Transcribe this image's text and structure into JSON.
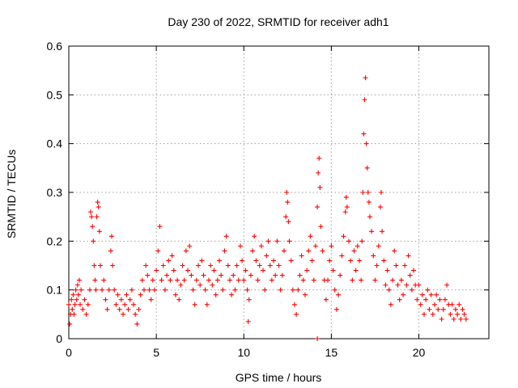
{
  "chart_data": {
    "type": "scatter",
    "title": "Day 230 of 2022, SRMTID for receiver adh1",
    "xlabel": "GPS time / hours",
    "ylabel": "SRMTID / TECUs",
    "xlim": [
      0,
      24
    ],
    "ylim": [
      0,
      0.6
    ],
    "xticks": [
      0,
      5,
      10,
      15,
      20
    ],
    "yticks": [
      0,
      0.1,
      0.2,
      0.3,
      0.4,
      0.5,
      0.6
    ],
    "xtick_labels": [
      "0",
      "5",
      "10",
      "15",
      "20"
    ],
    "ytick_labels": [
      "0",
      "0.1",
      "0.2",
      "0.3",
      "0.4",
      "0.5",
      "0.6"
    ],
    "grid": true,
    "marker": "+",
    "series_color": "#ff0000",
    "series": [
      {
        "name": "SRMTID",
        "points": [
          [
            0.0,
            0.07
          ],
          [
            0.05,
            0.03
          ],
          [
            0.1,
            0.05
          ],
          [
            0.15,
            0.08
          ],
          [
            0.2,
            0.06
          ],
          [
            0.25,
            0.09
          ],
          [
            0.3,
            0.05
          ],
          [
            0.35,
            0.07
          ],
          [
            0.4,
            0.1
          ],
          [
            0.45,
            0.08
          ],
          [
            0.5,
            0.11
          ],
          [
            0.55,
            0.09
          ],
          [
            0.6,
            0.12
          ],
          [
            0.65,
            0.07
          ],
          [
            0.7,
            0.1
          ],
          [
            0.8,
            0.06
          ],
          [
            0.9,
            0.08
          ],
          [
            1.0,
            0.05
          ],
          [
            1.1,
            0.07
          ],
          [
            1.2,
            0.1
          ],
          [
            1.25,
            0.26
          ],
          [
            1.3,
            0.25
          ],
          [
            1.35,
            0.23
          ],
          [
            1.4,
            0.2
          ],
          [
            1.45,
            0.15
          ],
          [
            1.5,
            0.12
          ],
          [
            1.55,
            0.1
          ],
          [
            1.6,
            0.25
          ],
          [
            1.65,
            0.28
          ],
          [
            1.7,
            0.27
          ],
          [
            1.75,
            0.22
          ],
          [
            1.8,
            0.15
          ],
          [
            1.9,
            0.1
          ],
          [
            2.0,
            0.12
          ],
          [
            2.1,
            0.08
          ],
          [
            2.2,
            0.06
          ],
          [
            2.3,
            0.1
          ],
          [
            2.4,
            0.18
          ],
          [
            2.45,
            0.21
          ],
          [
            2.5,
            0.15
          ],
          [
            2.6,
            0.1
          ],
          [
            2.7,
            0.07
          ],
          [
            2.8,
            0.09
          ],
          [
            2.9,
            0.06
          ],
          [
            3.0,
            0.08
          ],
          [
            3.1,
            0.05
          ],
          [
            3.2,
            0.07
          ],
          [
            3.3,
            0.09
          ],
          [
            3.4,
            0.06
          ],
          [
            3.5,
            0.08
          ],
          [
            3.6,
            0.1
          ],
          [
            3.7,
            0.07
          ],
          [
            3.8,
            0.05
          ],
          [
            3.9,
            0.03
          ],
          [
            4.0,
            0.06
          ],
          [
            4.1,
            0.09
          ],
          [
            4.2,
            0.12
          ],
          [
            4.3,
            0.1
          ],
          [
            4.4,
            0.15
          ],
          [
            4.5,
            0.13
          ],
          [
            4.6,
            0.1
          ],
          [
            4.7,
            0.08
          ],
          [
            4.8,
            0.12
          ],
          [
            4.9,
            0.1
          ],
          [
            5.0,
            0.14
          ],
          [
            5.1,
            0.18
          ],
          [
            5.2,
            0.23
          ],
          [
            5.3,
            0.12
          ],
          [
            5.4,
            0.15
          ],
          [
            5.5,
            0.1
          ],
          [
            5.6,
            0.13
          ],
          [
            5.7,
            0.16
          ],
          [
            5.8,
            0.12
          ],
          [
            5.9,
            0.17
          ],
          [
            6.0,
            0.14
          ],
          [
            6.1,
            0.09
          ],
          [
            6.2,
            0.12
          ],
          [
            6.3,
            0.08
          ],
          [
            6.4,
            0.11
          ],
          [
            6.5,
            0.15
          ],
          [
            6.6,
            0.12
          ],
          [
            6.7,
            0.18
          ],
          [
            6.8,
            0.14
          ],
          [
            6.9,
            0.19
          ],
          [
            7.0,
            0.13
          ],
          [
            7.1,
            0.1
          ],
          [
            7.2,
            0.07
          ],
          [
            7.3,
            0.12
          ],
          [
            7.4,
            0.15
          ],
          [
            7.5,
            0.11
          ],
          [
            7.6,
            0.16
          ],
          [
            7.7,
            0.13
          ],
          [
            7.8,
            0.1
          ],
          [
            7.9,
            0.07
          ],
          [
            8.0,
            0.12
          ],
          [
            8.1,
            0.15
          ],
          [
            8.2,
            0.11
          ],
          [
            8.3,
            0.14
          ],
          [
            8.4,
            0.09
          ],
          [
            8.5,
            0.12
          ],
          [
            8.6,
            0.16
          ],
          [
            8.7,
            0.13
          ],
          [
            8.8,
            0.1
          ],
          [
            8.9,
            0.18
          ],
          [
            9.0,
            0.21
          ],
          [
            9.1,
            0.15
          ],
          [
            9.2,
            0.12
          ],
          [
            9.3,
            0.09
          ],
          [
            9.4,
            0.13
          ],
          [
            9.5,
            0.1
          ],
          [
            9.6,
            0.15
          ],
          [
            9.7,
            0.12
          ],
          [
            9.8,
            0.19
          ],
          [
            9.9,
            0.16
          ],
          [
            10.0,
            0.12
          ],
          [
            10.1,
            0.14
          ],
          [
            10.2,
            0.1
          ],
          [
            10.25,
            0.035
          ],
          [
            10.3,
            0.08
          ],
          [
            10.4,
            0.13
          ],
          [
            10.5,
            0.18
          ],
          [
            10.6,
            0.21
          ],
          [
            10.7,
            0.16
          ],
          [
            10.8,
            0.12
          ],
          [
            10.9,
            0.15
          ],
          [
            11.0,
            0.19
          ],
          [
            11.1,
            0.14
          ],
          [
            11.2,
            0.1
          ],
          [
            11.3,
            0.17
          ],
          [
            11.4,
            0.2
          ],
          [
            11.5,
            0.15
          ],
          [
            11.6,
            0.12
          ],
          [
            11.7,
            0.16
          ],
          [
            11.8,
            0.13
          ],
          [
            11.9,
            0.2
          ],
          [
            12.0,
            0.15
          ],
          [
            12.1,
            0.1
          ],
          [
            12.2,
            0.13
          ],
          [
            12.3,
            0.18
          ],
          [
            12.4,
            0.25
          ],
          [
            12.45,
            0.3
          ],
          [
            12.5,
            0.28
          ],
          [
            12.55,
            0.24
          ],
          [
            12.6,
            0.2
          ],
          [
            12.7,
            0.16
          ],
          [
            12.8,
            0.1
          ],
          [
            12.9,
            0.07
          ],
          [
            13.0,
            0.05
          ],
          [
            13.1,
            0.1
          ],
          [
            13.2,
            0.13
          ],
          [
            13.3,
            0.17
          ],
          [
            13.4,
            0.12
          ],
          [
            13.5,
            0.09
          ],
          [
            13.6,
            0.14
          ],
          [
            13.7,
            0.18
          ],
          [
            13.8,
            0.21
          ],
          [
            13.9,
            0.16
          ],
          [
            14.0,
            0.12
          ],
          [
            14.1,
            0.19
          ],
          [
            14.2,
            0.27
          ],
          [
            14.25,
            0.34
          ],
          [
            14.3,
            0.37
          ],
          [
            14.35,
            0.31
          ],
          [
            14.4,
            0.23
          ],
          [
            14.5,
            0.18
          ],
          [
            14.6,
            0.12
          ],
          [
            14.7,
            0.08
          ],
          [
            14.8,
            0.12
          ],
          [
            14.9,
            0.16
          ],
          [
            15.0,
            0.19
          ],
          [
            15.1,
            0.14
          ],
          [
            15.2,
            0.1
          ],
          [
            15.3,
            0.06
          ],
          [
            15.4,
            0.09
          ],
          [
            15.5,
            0.13
          ],
          [
            15.6,
            0.17
          ],
          [
            15.7,
            0.21
          ],
          [
            15.8,
            0.26
          ],
          [
            15.85,
            0.29
          ],
          [
            15.9,
            0.27
          ],
          [
            16.0,
            0.2
          ],
          [
            16.1,
            0.16
          ],
          [
            16.2,
            0.12
          ],
          [
            16.3,
            0.18
          ],
          [
            16.4,
            0.14
          ],
          [
            16.5,
            0.19
          ],
          [
            16.6,
            0.16
          ],
          [
            16.7,
            0.12
          ],
          [
            16.75,
            0.2
          ],
          [
            16.8,
            0.3
          ],
          [
            16.85,
            0.42
          ],
          [
            16.9,
            0.49
          ],
          [
            16.95,
            0.535
          ],
          [
            17.0,
            0.4
          ],
          [
            17.05,
            0.35
          ],
          [
            17.1,
            0.3
          ],
          [
            17.15,
            0.28
          ],
          [
            17.2,
            0.25
          ],
          [
            17.3,
            0.22
          ],
          [
            17.4,
            0.17
          ],
          [
            17.5,
            0.12
          ],
          [
            17.6,
            0.15
          ],
          [
            17.7,
            0.19
          ],
          [
            17.8,
            0.27
          ],
          [
            17.85,
            0.3
          ],
          [
            17.9,
            0.22
          ],
          [
            18.0,
            0.16
          ],
          [
            18.1,
            0.11
          ],
          [
            18.2,
            0.14
          ],
          [
            18.3,
            0.1
          ],
          [
            18.4,
            0.07
          ],
          [
            18.5,
            0.12
          ],
          [
            18.6,
            0.18
          ],
          [
            18.7,
            0.15
          ],
          [
            18.8,
            0.11
          ],
          [
            18.9,
            0.08
          ],
          [
            19.0,
            0.12
          ],
          [
            19.1,
            0.09
          ],
          [
            19.2,
            0.15
          ],
          [
            19.3,
            0.11
          ],
          [
            19.4,
            0.17
          ],
          [
            19.5,
            0.13
          ],
          [
            19.6,
            0.1
          ],
          [
            19.7,
            0.14
          ],
          [
            19.8,
            0.11
          ],
          [
            19.9,
            0.08
          ],
          [
            20.0,
            0.11
          ],
          [
            20.1,
            0.07
          ],
          [
            20.2,
            0.09
          ],
          [
            20.3,
            0.05
          ],
          [
            20.4,
            0.08
          ],
          [
            20.5,
            0.1
          ],
          [
            20.6,
            0.06
          ],
          [
            20.7,
            0.09
          ],
          [
            20.8,
            0.05
          ],
          [
            20.9,
            0.07
          ],
          [
            21.0,
            0.09
          ],
          [
            21.1,
            0.06
          ],
          [
            21.2,
            0.08
          ],
          [
            21.3,
            0.04
          ],
          [
            21.4,
            0.06
          ],
          [
            21.5,
            0.08
          ],
          [
            21.6,
            0.11
          ],
          [
            21.7,
            0.07
          ],
          [
            21.8,
            0.05
          ],
          [
            21.9,
            0.07
          ],
          [
            22.0,
            0.04
          ],
          [
            22.1,
            0.06
          ],
          [
            22.2,
            0.05
          ],
          [
            22.3,
            0.07
          ],
          [
            22.4,
            0.04
          ],
          [
            22.5,
            0.06
          ],
          [
            22.6,
            0.05
          ],
          [
            22.7,
            0.04
          ],
          [
            14.2,
            0.0
          ]
        ]
      }
    ]
  }
}
